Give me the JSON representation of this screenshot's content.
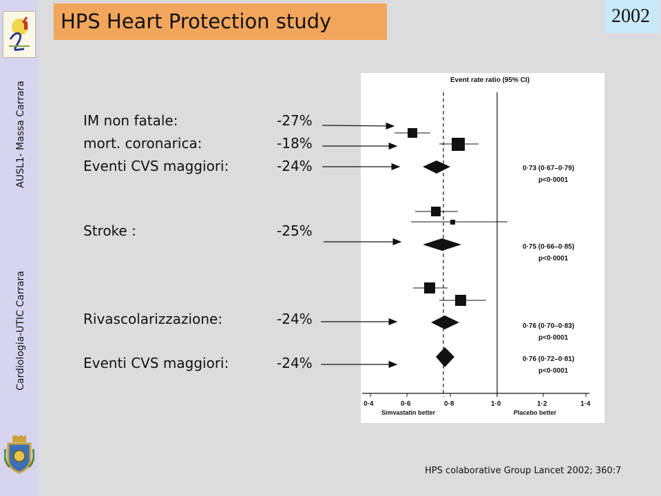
{
  "sidebar": {
    "org_unit": "AUSL1- Massa Carrara",
    "department": "Cardiologia-UTIC Carrara"
  },
  "header": {
    "title": "HPS Heart Protection study",
    "year": "2002"
  },
  "outcomes": [
    {
      "label": "IM non fatale:",
      "value": "-27%"
    },
    {
      "label": "mort. coronarica:",
      "value": "-18%"
    },
    {
      "label": "Eventi CVS maggiori:",
      "value": "-24%"
    },
    {
      "label": "Stroke :",
      "value": "-25%"
    },
    {
      "label": "Rivascolarizzazione:",
      "value": "-24%"
    },
    {
      "label": "Eventi CVS maggiori:",
      "value": "-24%"
    }
  ],
  "forest_plot": {
    "header": "Event rate ratio (95% CI)",
    "x_ticks": [
      "0·4",
      "0·6",
      "0·8",
      "1·0",
      "1·2",
      "1·4"
    ],
    "x_left_label": "Simvastatin better",
    "x_right_label": "Placebo better",
    "summaries": [
      {
        "ci": "0·73 (0·67–0·79)",
        "p": "p<0·0001"
      },
      {
        "ci": "0·75 (0·66–0·85)",
        "p": "p<0·0001"
      },
      {
        "ci": "0·76 (0·70–0·83)",
        "p": "p<0·0001"
      },
      {
        "ci": "0·76 (0·72–0·81)",
        "p": "p<0·0001"
      }
    ]
  },
  "citation": "HPS colaborative Group Lancet 2002;  360:7",
  "colors": {
    "title_bg": "#f2a65c",
    "year_bg": "#c9e9f9",
    "sidebar_bg": "#d6d4ee",
    "slide_bg": "#dcdcdc"
  }
}
